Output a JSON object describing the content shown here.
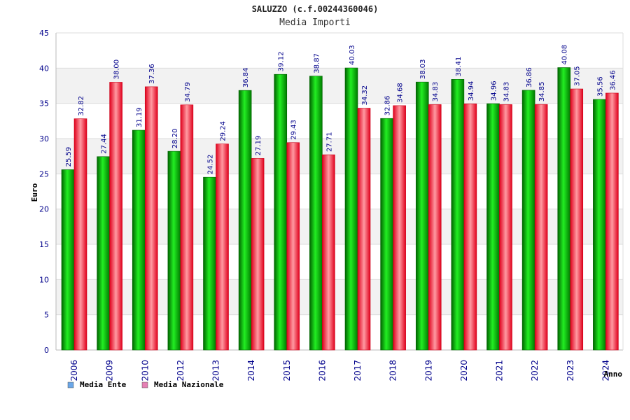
{
  "chart_data": {
    "type": "bar",
    "title": "SALUZZO (c.f.00244360046)",
    "subtitle": "Media Importi",
    "xlabel": "Anno",
    "ylabel": "Euro",
    "ylim": [
      0,
      45
    ],
    "yticks": [
      0,
      5,
      10,
      15,
      20,
      25,
      30,
      35,
      40,
      45
    ],
    "grid": true,
    "categories": [
      "2006",
      "2009",
      "2010",
      "2012",
      "2013",
      "2014",
      "2015",
      "2016",
      "2017",
      "2018",
      "2019",
      "2020",
      "2021",
      "2022",
      "2023",
      "2024"
    ],
    "series": [
      {
        "name": "Media Ente",
        "color": "#00cc00",
        "legend_color": "#6aa6e8",
        "values": [
          25.59,
          27.44,
          31.19,
          28.2,
          24.52,
          36.84,
          39.12,
          38.87,
          40.03,
          32.86,
          38.03,
          38.41,
          34.96,
          36.86,
          40.08,
          35.56
        ],
        "labels": [
          "25.59",
          "27.44",
          "31.19",
          "28.20",
          "24.52",
          "36.84",
          "39.12",
          "38.87",
          "40.03",
          "32.86",
          "38.03",
          "38.41",
          "34.96",
          "36.86",
          "40.08",
          "35.56"
        ]
      },
      {
        "name": "Media Nazionale",
        "color": "#ff3b3b",
        "legend_color": "#e67fb4",
        "values": [
          32.82,
          38.0,
          37.36,
          34.79,
          29.24,
          27.19,
          29.43,
          27.71,
          34.32,
          34.68,
          34.83,
          34.94,
          34.83,
          34.85,
          37.05,
          36.46
        ],
        "labels": [
          "32.82",
          "38.00",
          "37.36",
          "34.79",
          "29.24",
          "27.19",
          "29.43",
          "27.71",
          "34.32",
          "34.68",
          "34.83",
          "34.94",
          "34.83",
          "34.85",
          "37.05",
          "36.46"
        ]
      }
    ],
    "legend_position": "bottom-left"
  }
}
